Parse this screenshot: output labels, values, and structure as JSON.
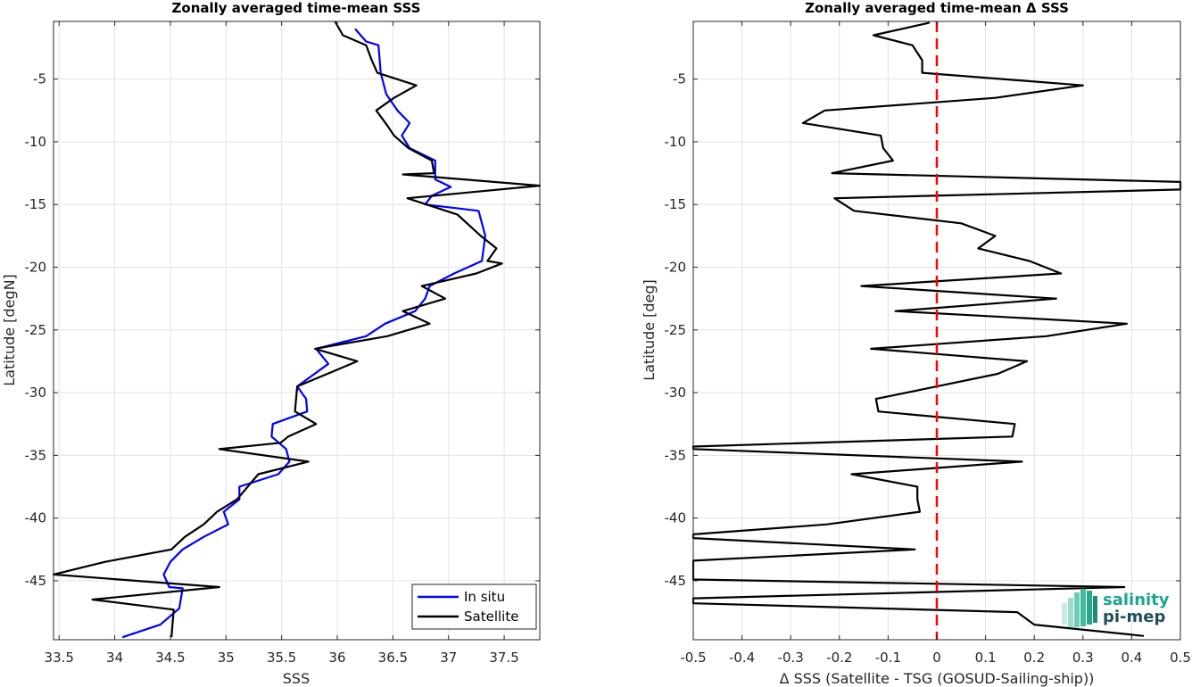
{
  "chart_data": [
    {
      "type": "line",
      "title": "Zonally averaged time-mean SSS",
      "xlabel": "SSS",
      "ylabel": "Latitude [degN]",
      "xlim": [
        33.45,
        37.82
      ],
      "ylim": [
        -49.7,
        -0.4
      ],
      "xticks": [
        33.5,
        34,
        34.5,
        35,
        35.5,
        36,
        36.5,
        37,
        37.5
      ],
      "xtick_labels": [
        "33.5",
        "34",
        "34.5",
        "35",
        "35.5",
        "36",
        "36.5",
        "37",
        "37.5"
      ],
      "yticks": [
        -5,
        -10,
        -15,
        -20,
        -25,
        -30,
        -35,
        -40,
        -45
      ],
      "ytick_labels": [
        "-5",
        "-10",
        "-15",
        "-20",
        "-25",
        "-30",
        "-35",
        "-40",
        "-45"
      ],
      "grid": true,
      "legend_position": "bottom-right",
      "series": [
        {
          "name": "In situ",
          "color": "#0000ff",
          "points": [
            [
              36.16,
              -1.0
            ],
            [
              36.26,
              -2.0
            ],
            [
              36.37,
              -2.3
            ],
            [
              36.39,
              -4.5
            ],
            [
              36.44,
              -6.2
            ],
            [
              36.54,
              -7.5
            ],
            [
              36.65,
              -8.5
            ],
            [
              36.58,
              -9.5
            ],
            [
              36.65,
              -10.5
            ],
            [
              36.88,
              -11.5
            ],
            [
              36.88,
              -13.0
            ],
            [
              37.02,
              -13.6
            ],
            [
              36.85,
              -14.3
            ],
            [
              36.79,
              -15.0
            ],
            [
              37.27,
              -15.5
            ],
            [
              37.33,
              -17.5
            ],
            [
              37.3,
              -19.5
            ],
            [
              37.05,
              -20.5
            ],
            [
              36.83,
              -21.5
            ],
            [
              36.79,
              -22.5
            ],
            [
              36.7,
              -23.5
            ],
            [
              36.43,
              -24.5
            ],
            [
              36.26,
              -25.5
            ],
            [
              35.81,
              -26.5
            ],
            [
              35.92,
              -27.7
            ],
            [
              35.64,
              -29.5
            ],
            [
              35.72,
              -30.5
            ],
            [
              35.73,
              -31.5
            ],
            [
              35.42,
              -32.5
            ],
            [
              35.41,
              -33.5
            ],
            [
              35.54,
              -34.5
            ],
            [
              35.57,
              -35.5
            ],
            [
              35.47,
              -36.5
            ],
            [
              35.12,
              -37.5
            ],
            [
              35.12,
              -38.5
            ],
            [
              34.98,
              -39.5
            ],
            [
              35.02,
              -40.5
            ],
            [
              34.8,
              -41.5
            ],
            [
              34.61,
              -42.5
            ],
            [
              34.5,
              -43.5
            ],
            [
              34.44,
              -44.5
            ],
            [
              34.49,
              -45.5
            ],
            [
              34.61,
              -45.6
            ],
            [
              34.58,
              -47.2
            ],
            [
              34.41,
              -48.5
            ],
            [
              34.07,
              -49.5
            ]
          ]
        },
        {
          "name": "Satellite",
          "color": "#000000",
          "points": [
            [
              35.98,
              -0.4
            ],
            [
              36.05,
              -1.5
            ],
            [
              36.26,
              -2.3
            ],
            [
              36.31,
              -3.5
            ],
            [
              36.36,
              -4.5
            ],
            [
              36.71,
              -5.5
            ],
            [
              36.51,
              -6.5
            ],
            [
              36.35,
              -7.5
            ],
            [
              36.45,
              -8.7
            ],
            [
              36.51,
              -9.5
            ],
            [
              36.64,
              -10.5
            ],
            [
              36.85,
              -11.5
            ],
            [
              36.87,
              -12.5
            ],
            [
              36.59,
              -12.6
            ],
            [
              37.82,
              -13.5
            ],
            [
              36.63,
              -14.5
            ],
            [
              37.08,
              -15.8
            ],
            [
              37.29,
              -17.5
            ],
            [
              37.43,
              -18.5
            ],
            [
              37.35,
              -19.5
            ],
            [
              37.48,
              -19.7
            ],
            [
              37.25,
              -20.5
            ],
            [
              36.76,
              -21.5
            ],
            [
              36.97,
              -22.5
            ],
            [
              36.59,
              -23.5
            ],
            [
              36.83,
              -24.5
            ],
            [
              36.45,
              -25.5
            ],
            [
              35.8,
              -26.5
            ],
            [
              36.18,
              -27.5
            ],
            [
              35.64,
              -29.5
            ],
            [
              35.62,
              -31.5
            ],
            [
              35.81,
              -32.5
            ],
            [
              35.56,
              -33.5
            ],
            [
              35.49,
              -34.0
            ],
            [
              34.94,
              -34.5
            ],
            [
              35.74,
              -35.5
            ],
            [
              35.29,
              -36.5
            ],
            [
              35.1,
              -38.5
            ],
            [
              34.92,
              -39.5
            ],
            [
              34.8,
              -40.5
            ],
            [
              34.63,
              -41.5
            ],
            [
              34.51,
              -42.5
            ],
            [
              33.91,
              -43.5
            ],
            [
              33.45,
              -44.5
            ],
            [
              34.94,
              -45.5
            ],
            [
              33.8,
              -46.5
            ],
            [
              34.53,
              -47.3
            ],
            [
              34.51,
              -49.5
            ]
          ]
        }
      ]
    },
    {
      "type": "line",
      "title": "Zonally averaged time-mean Δ SSS",
      "xlabel": "Δ SSS (Satellite - TSG (GOSUD-Sailing-ship))",
      "ylabel": "Latitude [deg]",
      "xlim": [
        -0.5,
        0.5
      ],
      "ylim": [
        -49.7,
        -0.4
      ],
      "xticks": [
        -0.5,
        -0.4,
        -0.3,
        -0.2,
        -0.1,
        0,
        0.1,
        0.2,
        0.3,
        0.4,
        0.5
      ],
      "xtick_labels": [
        "-0.5",
        "-0.4",
        "-0.3",
        "-0.2",
        "-0.1",
        "0",
        "0.1",
        "0.2",
        "0.3",
        "0.4",
        "0.5"
      ],
      "yticks": [
        -5,
        -10,
        -15,
        -20,
        -25,
        -30,
        -35,
        -40,
        -45
      ],
      "ytick_labels": [
        "-5",
        "-10",
        "-15",
        "-20",
        "-25",
        "-30",
        "-35",
        "-40",
        "-45"
      ],
      "grid": true,
      "reference_line": {
        "x": 0,
        "color": "#ff0000",
        "style": "dashed"
      },
      "series": [
        {
          "color": "#000000",
          "points": [
            [
              -0.015,
              -0.5
            ],
            [
              -0.13,
              -1.5
            ],
            [
              -0.05,
              -2.3
            ],
            [
              -0.03,
              -3.5
            ],
            [
              -0.03,
              -4.5
            ],
            [
              0.3,
              -5.5
            ],
            [
              0.12,
              -6.5
            ],
            [
              -0.23,
              -7.5
            ],
            [
              -0.275,
              -8.5
            ],
            [
              -0.115,
              -9.5
            ],
            [
              -0.11,
              -10.5
            ],
            [
              -0.09,
              -11.5
            ],
            [
              -0.215,
              -12.5
            ],
            [
              0.5,
              -13.2
            ],
            [
              0.5,
              -13.8
            ],
            [
              -0.21,
              -14.5
            ],
            [
              -0.17,
              -15.5
            ],
            [
              0.05,
              -16.5
            ],
            [
              0.12,
              -17.5
            ],
            [
              0.085,
              -18.5
            ],
            [
              0.19,
              -19.5
            ],
            [
              0.255,
              -20.5
            ],
            [
              -0.155,
              -21.5
            ],
            [
              0.245,
              -22.5
            ],
            [
              -0.085,
              -23.5
            ],
            [
              0.39,
              -24.5
            ],
            [
              0.225,
              -25.5
            ],
            [
              -0.135,
              -26.5
            ],
            [
              0.185,
              -27.5
            ],
            [
              0.125,
              -28.5
            ],
            [
              0.0,
              -29.5
            ],
            [
              -0.125,
              -30.5
            ],
            [
              -0.12,
              -31.5
            ],
            [
              0.16,
              -32.5
            ],
            [
              0.155,
              -33.5
            ],
            [
              -0.5,
              -34.3
            ],
            [
              -0.5,
              -34.5
            ],
            [
              0.175,
              -35.5
            ],
            [
              -0.175,
              -36.5
            ],
            [
              -0.04,
              -37.5
            ],
            [
              -0.04,
              -38.5
            ],
            [
              -0.035,
              -39.5
            ],
            [
              -0.225,
              -40.5
            ],
            [
              -0.5,
              -41.3
            ],
            [
              -0.5,
              -41.6
            ],
            [
              -0.045,
              -42.5
            ],
            [
              -0.5,
              -43.4
            ],
            [
              -0.5,
              -44.9
            ],
            [
              0.385,
              -45.5
            ],
            [
              -0.5,
              -46.4
            ],
            [
              -0.5,
              -46.8
            ],
            [
              0.165,
              -47.5
            ],
            [
              0.2,
              -48.5
            ],
            [
              0.425,
              -49.4
            ]
          ]
        }
      ]
    }
  ],
  "legend": {
    "items": [
      {
        "label": "In situ",
        "color": "#0000ff"
      },
      {
        "label": "Satellite",
        "color": "#000000"
      }
    ]
  },
  "logo": {
    "line1": "salinity",
    "line2": "pi-mep",
    "color1": "#1aa68c",
    "color2": "#1f4e5a"
  }
}
